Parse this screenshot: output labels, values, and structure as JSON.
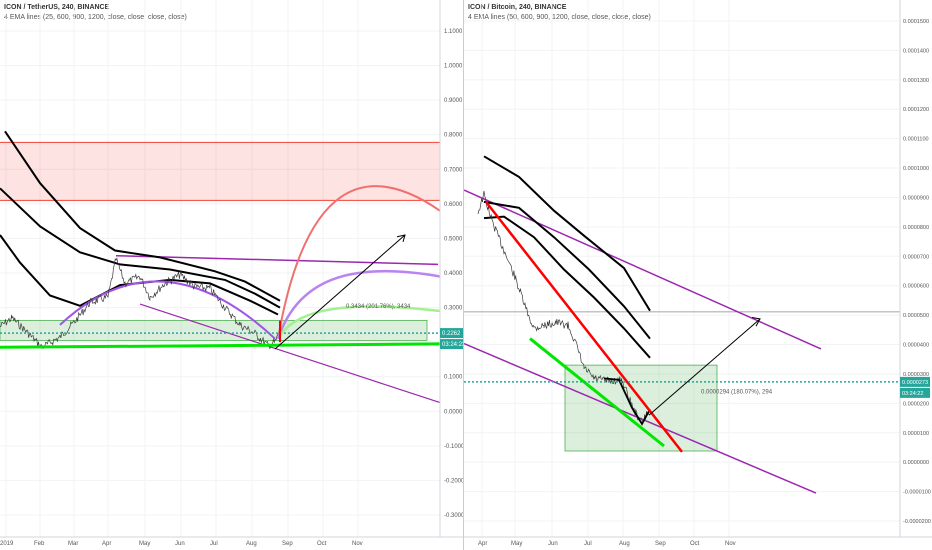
{
  "chart_data": [
    {
      "type": "line",
      "symbol": "ICON / TetherUS, 240, BINANCE",
      "indicator": "4 EMA lines (25, 600, 900, 1200, close, close, close, close)",
      "y_ticks": [
        "1.1000",
        "1.0000",
        "0.9000",
        "0.8000",
        "0.7000",
        "0.6000",
        "0.5000",
        "0.4000",
        "0.3000",
        "0.2000",
        "0.1000",
        "0.0000",
        "-0.1000",
        "-0.2000",
        "-0.3000"
      ],
      "x_ticks": [
        "2019",
        "Feb",
        "Mar",
        "Apr",
        "May",
        "Jun",
        "Jul",
        "Aug",
        "Sep",
        "Oct",
        "Nov"
      ],
      "ylim": [
        -0.33,
        1.12
      ],
      "price_label": "0.2262",
      "countdown_label": "03:24:22",
      "measure_label": "0.3434 (201.76%), 3434",
      "colors": {
        "price_line": "#26a69a",
        "resistance_zone": "#f44336",
        "support_zone": "#4caf50",
        "trend_line": "#9c27b0",
        "ema": "#000000",
        "green_line": "#00e600"
      }
    },
    {
      "type": "line",
      "symbol": "ICON / Bitcoin, 240, BINANCE",
      "indicator": "4 EMA lines (50, 600, 900, 1200, close, close, close, close)",
      "y_ticks": [
        "0.0001500",
        "0.0001400",
        "0.0001300",
        "0.0001200",
        "0.0001100",
        "0.0001000",
        "0.0000900",
        "0.0000800",
        "0.0000700",
        "0.0000600",
        "0.0000500",
        "0.0000400",
        "0.0000300",
        "0.0000200",
        "0.0000100",
        "0.0000000",
        "-0.0000100",
        "-0.0000200"
      ],
      "x_ticks": [
        "Apr",
        "May",
        "Jun",
        "Jul",
        "Aug",
        "Sep",
        "Oct",
        "Nov"
      ],
      "ylim": [
        -2.25e-05,
        0.0001525
      ],
      "price_label": "0.0000273",
      "countdown_label": "03:24:22",
      "measure_label": "0.0000294 (180.07%), 294",
      "colors": {
        "price_line": "#26a69a",
        "support_zone": "#4caf50",
        "trend_line": "#9c27b0",
        "ema": "#000000",
        "red_line": "#ff0000",
        "green_line": "#00e600"
      }
    }
  ]
}
